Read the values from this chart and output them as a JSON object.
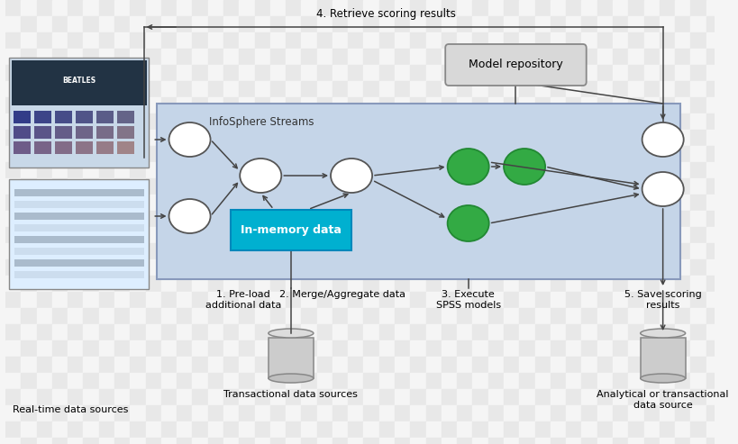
{
  "bg_checker_light": "#f5f5f5",
  "bg_checker_dark": "#e8e8e8",
  "box_color": "#c5d5e8",
  "box_edge_color": "#8899bb",
  "cyan_box_color": "#00b0d0",
  "model_repo_color": "#d8d8d8",
  "model_repo_edge": "#888888",
  "white_circle_face": "#ffffff",
  "white_circle_edge": "#555555",
  "green_circle_face": "#33aa44",
  "green_circle_edge": "#228833",
  "screen_color1": "#e8f0f8",
  "screen_color2": "#ddeeff",
  "arrow_color": "#444444",
  "line_color": "#444444",
  "infosphere_label": "InfoSphere Streams",
  "model_repo_label": "Model repository",
  "inmemory_label": "In-memory data",
  "step1_label": "1. Pre-load\nadditional data",
  "step2_label": "2. Merge/Aggregate data",
  "step3_label": "3. Execute\nSPSS models",
  "step4_label": "4. Retrieve scoring results",
  "step5_label": "5. Save scoring\nresults",
  "label_rt": "Real-time data sources",
  "label_trans": "Transactional data sources",
  "label_analytical": "Analytical or transactional\ndata source",
  "checker_tile": 18
}
